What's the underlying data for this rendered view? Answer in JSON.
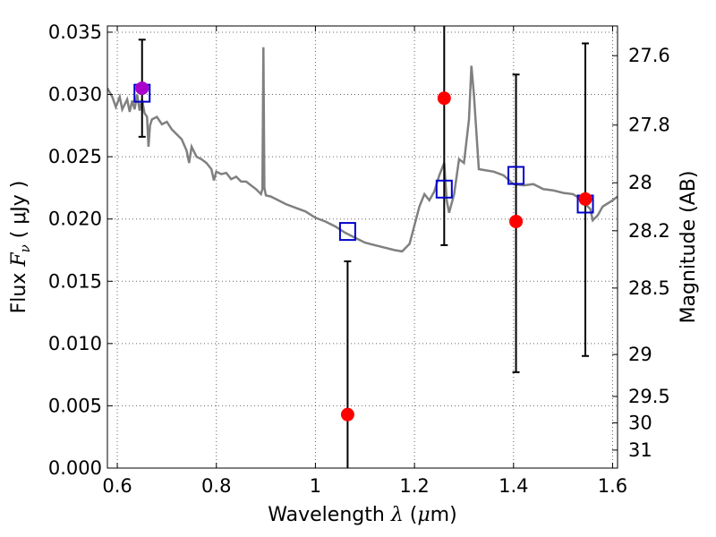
{
  "chart_data": {
    "type": "scatter",
    "xlabel_prefix": "Wavelength",
    "xlabel_symbol": "λ",
    "xlabel_unit_open": "(",
    "xlabel_unit_mu": "μ",
    "xlabel_unit_rest": "m)",
    "ylabel_prefix": "Flux",
    "ylabel_symbol": "F",
    "ylabel_sub": "ν",
    "ylabel_unit": "( μJy )",
    "y2label": "Magnitude (AB)",
    "xlim": [
      0.58,
      1.61
    ],
    "ylim": [
      0.0,
      0.0355
    ],
    "grid": true,
    "x_ticks": [
      {
        "value": 0.6,
        "label": ""
      },
      {
        "value": 0.8,
        "label": "0.8"
      },
      {
        "value": 1.0,
        "label": "1"
      },
      {
        "value": 1.2,
        "label": "1.2"
      },
      {
        "value": 1.4,
        "label": "1.4"
      },
      {
        "value": 1.6,
        "label": "1.6"
      }
    ],
    "x_label_ticks": [
      {
        "value": 0.6,
        "label": "0.6"
      }
    ],
    "y_ticks": [
      {
        "value": 0.0,
        "label": "0.000"
      },
      {
        "value": 0.005,
        "label": "0.005"
      },
      {
        "value": 0.01,
        "label": "0.010"
      },
      {
        "value": 0.015,
        "label": "0.015"
      },
      {
        "value": 0.02,
        "label": "0.020"
      },
      {
        "value": 0.025,
        "label": "0.025"
      },
      {
        "value": 0.03,
        "label": "0.030"
      },
      {
        "value": 0.035,
        "label": "0.035"
      }
    ],
    "y2_ticks": [
      {
        "value": 27.6,
        "label": "27.6"
      },
      {
        "value": 27.8,
        "label": "27.8"
      },
      {
        "value": 28.0,
        "label": "28"
      },
      {
        "value": 28.2,
        "label": "28.2"
      },
      {
        "value": 28.5,
        "label": "28.5"
      },
      {
        "value": 29.0,
        "label": "29"
      },
      {
        "value": 29.5,
        "label": "29.5"
      },
      {
        "value": 30.0,
        "label": "30"
      },
      {
        "value": 31.0,
        "label": "31"
      }
    ],
    "model_spectrum": {
      "color": "#808080",
      "x": [
        0.58,
        0.59,
        0.597,
        0.605,
        0.61,
        0.62,
        0.625,
        0.63,
        0.635,
        0.64,
        0.645,
        0.65,
        0.655,
        0.66,
        0.663,
        0.666,
        0.67,
        0.68,
        0.69,
        0.7,
        0.71,
        0.72,
        0.73,
        0.74,
        0.745,
        0.75,
        0.76,
        0.77,
        0.78,
        0.79,
        0.795,
        0.8,
        0.81,
        0.82,
        0.83,
        0.84,
        0.85,
        0.86,
        0.87,
        0.88,
        0.89,
        0.893,
        0.895,
        0.897,
        0.9,
        0.91,
        0.92,
        0.94,
        0.96,
        0.98,
        1.0,
        1.02,
        1.04,
        1.06,
        1.08,
        1.1,
        1.12,
        1.14,
        1.16,
        1.175,
        1.19,
        1.21,
        1.22,
        1.23,
        1.24,
        1.25,
        1.26,
        1.265,
        1.27,
        1.28,
        1.29,
        1.3,
        1.31,
        1.315,
        1.32,
        1.33,
        1.36,
        1.38,
        1.4,
        1.42,
        1.44,
        1.46,
        1.48,
        1.5,
        1.52,
        1.54,
        1.55,
        1.555,
        1.56,
        1.57,
        1.58,
        1.6,
        1.61
      ],
      "y": [
        0.0305,
        0.0298,
        0.029,
        0.0298,
        0.0288,
        0.0296,
        0.0286,
        0.0295,
        0.0288,
        0.03,
        0.0287,
        0.0296,
        0.0285,
        0.0282,
        0.0258,
        0.0275,
        0.028,
        0.0282,
        0.0276,
        0.0278,
        0.0272,
        0.0268,
        0.0264,
        0.0255,
        0.0245,
        0.0258,
        0.025,
        0.0248,
        0.0245,
        0.024,
        0.0231,
        0.0238,
        0.0236,
        0.0237,
        0.0232,
        0.0234,
        0.023,
        0.023,
        0.0227,
        0.0224,
        0.022,
        0.0224,
        0.0338,
        0.0225,
        0.0219,
        0.0218,
        0.0216,
        0.0212,
        0.0209,
        0.0206,
        0.0201,
        0.0198,
        0.0194,
        0.0189,
        0.0185,
        0.0181,
        0.0179,
        0.0177,
        0.0175,
        0.0174,
        0.018,
        0.021,
        0.022,
        0.0215,
        0.0222,
        0.0235,
        0.0245,
        0.0215,
        0.0205,
        0.022,
        0.0248,
        0.0245,
        0.028,
        0.0323,
        0.03,
        0.024,
        0.0238,
        0.0235,
        0.0228,
        0.0227,
        0.0228,
        0.0224,
        0.0223,
        0.0221,
        0.022,
        0.0215,
        0.021,
        0.0208,
        0.0199,
        0.0203,
        0.021,
        0.0215,
        0.0218
      ]
    },
    "model_bands": {
      "color": "#0000cc",
      "x": [
        0.65,
        1.065,
        1.26,
        1.405,
        1.545
      ],
      "y": [
        0.0301,
        0.019,
        0.0224,
        0.0235,
        0.0212
      ]
    },
    "observed": {
      "color": "#ff0000",
      "x": [
        1.065,
        1.26,
        1.405,
        1.545
      ],
      "y": [
        0.0043,
        0.0297,
        0.0198,
        0.0216
      ],
      "yerr_low": [
        0.0,
        0.0179,
        0.0077,
        0.009
      ],
      "yerr_high": [
        0.0166,
        0.0362,
        0.0316,
        0.0341
      ]
    },
    "observed_special": {
      "color": "#aa00cc",
      "x": [
        0.65
      ],
      "y": [
        0.0305
      ],
      "yerr_low": [
        0.0266
      ],
      "yerr_high": [
        0.0344
      ]
    }
  }
}
